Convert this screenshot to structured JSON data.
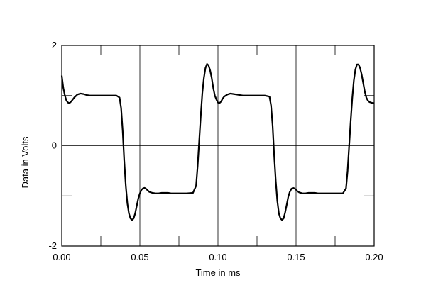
{
  "chart_data": {
    "type": "line",
    "title": "",
    "xlabel": "Time in ms",
    "ylabel": "Data in Volts",
    "xlim": [
      0,
      0.2
    ],
    "ylim": [
      -2,
      2
    ],
    "x_ticks": [
      {
        "value": 0,
        "label": "0.00"
      },
      {
        "value": 0.05,
        "label": "0.05"
      },
      {
        "value": 0.1,
        "label": "0.10"
      },
      {
        "value": 0.15,
        "label": "0.15"
      },
      {
        "value": 0.2,
        "label": "0.20"
      }
    ],
    "y_ticks": [
      {
        "value": -2,
        "label": "-2"
      },
      {
        "value": 0,
        "label": "0"
      },
      {
        "value": 2,
        "label": "2"
      }
    ],
    "grid": true,
    "line_color": "#000000",
    "series": [
      {
        "x": [
          0.0,
          0.001,
          0.002,
          0.003,
          0.004,
          0.005,
          0.006,
          0.008,
          0.01,
          0.012,
          0.014,
          0.016,
          0.018,
          0.02,
          0.025,
          0.03,
          0.035,
          0.037,
          0.038,
          0.039,
          0.04,
          0.041,
          0.042,
          0.043,
          0.044,
          0.045,
          0.046,
          0.047,
          0.048,
          0.049,
          0.05,
          0.051,
          0.052,
          0.053,
          0.054,
          0.055,
          0.056,
          0.058,
          0.06,
          0.062,
          0.064,
          0.066,
          0.068,
          0.07,
          0.075,
          0.08,
          0.084,
          0.086,
          0.087,
          0.088,
          0.089,
          0.09,
          0.091,
          0.092,
          0.093,
          0.094,
          0.095,
          0.096,
          0.097,
          0.098,
          0.099,
          0.1,
          0.101,
          0.102,
          0.103,
          0.104,
          0.106,
          0.108,
          0.11,
          0.112,
          0.114,
          0.116,
          0.118,
          0.12,
          0.125,
          0.13,
          0.133,
          0.134,
          0.135,
          0.136,
          0.137,
          0.138,
          0.139,
          0.14,
          0.141,
          0.142,
          0.143,
          0.144,
          0.145,
          0.146,
          0.147,
          0.148,
          0.149,
          0.15,
          0.151,
          0.152,
          0.154,
          0.156,
          0.158,
          0.16,
          0.162,
          0.164,
          0.166,
          0.17,
          0.175,
          0.18,
          0.182,
          0.183,
          0.184,
          0.185,
          0.186,
          0.187,
          0.188,
          0.189,
          0.19,
          0.191,
          0.192,
          0.193,
          0.194,
          0.195,
          0.196,
          0.197,
          0.198,
          0.199,
          0.2
        ],
        "values": [
          1.4,
          1.15,
          1.0,
          0.9,
          0.86,
          0.85,
          0.88,
          0.96,
          1.02,
          1.04,
          1.03,
          1.01,
          1.0,
          1.0,
          1.0,
          1.0,
          1.0,
          0.96,
          0.75,
          0.3,
          -0.3,
          -0.8,
          -1.15,
          -1.35,
          -1.45,
          -1.48,
          -1.45,
          -1.35,
          -1.2,
          -1.05,
          -0.95,
          -0.88,
          -0.85,
          -0.84,
          -0.86,
          -0.89,
          -0.92,
          -0.94,
          -0.95,
          -0.95,
          -0.94,
          -0.94,
          -0.94,
          -0.95,
          -0.95,
          -0.95,
          -0.94,
          -0.8,
          -0.4,
          0.1,
          0.6,
          1.05,
          1.35,
          1.55,
          1.63,
          1.6,
          1.5,
          1.35,
          1.15,
          1.0,
          0.92,
          0.86,
          0.85,
          0.88,
          0.94,
          0.98,
          1.02,
          1.04,
          1.03,
          1.02,
          1.01,
          1.0,
          1.0,
          1.0,
          1.0,
          1.0,
          0.98,
          0.8,
          0.4,
          -0.2,
          -0.7,
          -1.1,
          -1.35,
          -1.45,
          -1.48,
          -1.45,
          -1.33,
          -1.18,
          -1.02,
          -0.92,
          -0.86,
          -0.84,
          -0.85,
          -0.88,
          -0.91,
          -0.93,
          -0.95,
          -0.95,
          -0.94,
          -0.94,
          -0.94,
          -0.95,
          -0.95,
          -0.95,
          -0.95,
          -0.95,
          -0.85,
          -0.5,
          0.0,
          0.5,
          0.95,
          1.3,
          1.52,
          1.62,
          1.62,
          1.55,
          1.42,
          1.25,
          1.08,
          0.96,
          0.9,
          0.87,
          0.86,
          0.85,
          0.85
        ]
      }
    ]
  }
}
